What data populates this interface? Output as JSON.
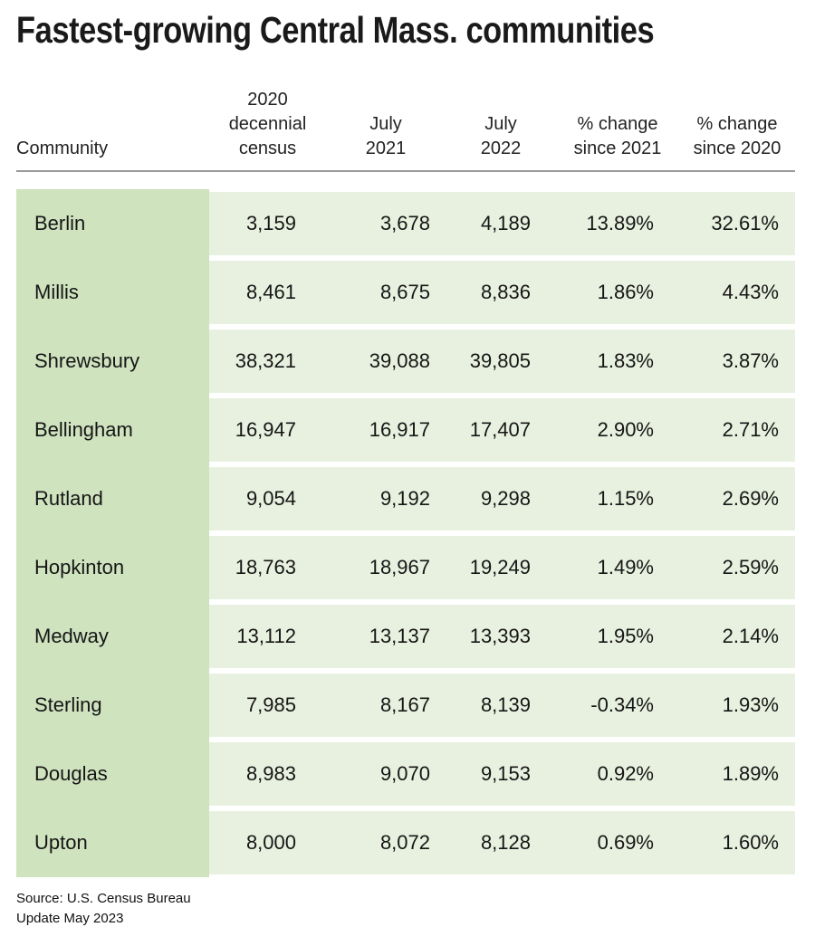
{
  "title": "Fastest-growing Central Mass. communities",
  "table": {
    "columns": [
      {
        "label": "Community"
      },
      {
        "label": "2020 decennial\ncensus"
      },
      {
        "label": "July\n2021"
      },
      {
        "label": "July\n2022"
      },
      {
        "label": "% change\nsince 2021"
      },
      {
        "label": "% change\nsince 2020"
      }
    ],
    "rows": [
      {
        "community": "Berlin",
        "census2020": "3,159",
        "july2021": "3,678",
        "july2022": "4,189",
        "pct_since_2021": "13.89%",
        "pct_since_2020": "32.61%"
      },
      {
        "community": "Millis",
        "census2020": "8,461",
        "july2021": "8,675",
        "july2022": "8,836",
        "pct_since_2021": "1.86%",
        "pct_since_2020": "4.43%"
      },
      {
        "community": "Shrewsbury",
        "census2020": "38,321",
        "july2021": "39,088",
        "july2022": "39,805",
        "pct_since_2021": "1.83%",
        "pct_since_2020": "3.87%"
      },
      {
        "community": "Bellingham",
        "census2020": "16,947",
        "july2021": "16,917",
        "july2022": "17,407",
        "pct_since_2021": "2.90%",
        "pct_since_2020": "2.71%"
      },
      {
        "community": "Rutland",
        "census2020": "9,054",
        "july2021": "9,192",
        "july2022": "9,298",
        "pct_since_2021": "1.15%",
        "pct_since_2020": "2.69%"
      },
      {
        "community": "Hopkinton",
        "census2020": "18,763",
        "july2021": "18,967",
        "july2022": "19,249",
        "pct_since_2021": "1.49%",
        "pct_since_2020": "2.59%"
      },
      {
        "community": "Medway",
        "census2020": "13,112",
        "july2021": "13,137",
        "july2022": "13,393",
        "pct_since_2021": "1.95%",
        "pct_since_2020": "2.14%"
      },
      {
        "community": "Sterling",
        "census2020": "7,985",
        "july2021": "8,167",
        "july2022": "8,139",
        "pct_since_2021": "-0.34%",
        "pct_since_2020": "1.93%"
      },
      {
        "community": "Douglas",
        "census2020": "8,983",
        "july2021": "9,070",
        "july2022": "9,153",
        "pct_since_2021": "0.92%",
        "pct_since_2020": "1.89%"
      },
      {
        "community": "Upton",
        "census2020": "8,000",
        "july2021": "8,072",
        "july2022": "8,128",
        "pct_since_2021": "0.69%",
        "pct_since_2020": "1.60%"
      }
    ]
  },
  "footer": {
    "source": "Source: U.S. Census Bureau",
    "update": "Update May 2023"
  },
  "colors": {
    "community_cell_bg": "#cfe3bf",
    "row_bg": "#e8f1df",
    "divider": "#9a9a9a"
  },
  "chart_data": {
    "type": "table",
    "title": "Fastest-growing Central Mass. communities",
    "columns": [
      "Community",
      "2020 decennial census",
      "July 2021",
      "July 2022",
      "% change since 2021",
      "% change since 2020"
    ],
    "rows": [
      [
        "Berlin",
        3159,
        3678,
        4189,
        13.89,
        32.61
      ],
      [
        "Millis",
        8461,
        8675,
        8836,
        1.86,
        4.43
      ],
      [
        "Shrewsbury",
        38321,
        39088,
        39805,
        1.83,
        3.87
      ],
      [
        "Bellingham",
        16947,
        16917,
        17407,
        2.9,
        2.71
      ],
      [
        "Rutland",
        9054,
        9192,
        9298,
        1.15,
        2.69
      ],
      [
        "Hopkinton",
        18763,
        18967,
        19249,
        1.49,
        2.59
      ],
      [
        "Medway",
        13112,
        13137,
        13393,
        1.95,
        2.14
      ],
      [
        "Sterling",
        7985,
        8167,
        8139,
        -0.34,
        1.93
      ],
      [
        "Douglas",
        8983,
        9070,
        9153,
        0.92,
        1.89
      ],
      [
        "Upton",
        8000,
        8072,
        8128,
        0.69,
        1.6
      ]
    ],
    "pct_units": "percent",
    "source": "Source: U.S. Census Bureau",
    "note": "Update May 2023"
  }
}
